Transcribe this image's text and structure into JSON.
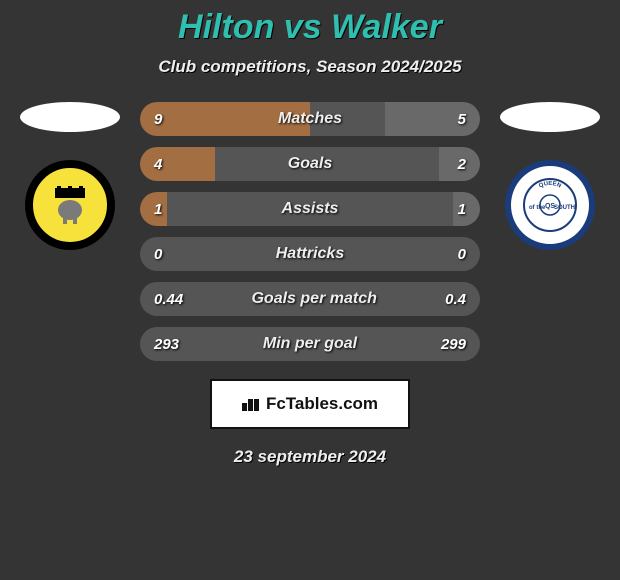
{
  "title": "Hilton vs Walker",
  "subtitle": "Club competitions, Season 2024/2025",
  "date": "23 september 2024",
  "logo_text": "FcTables.com",
  "colors": {
    "page_bg": "#343434",
    "title_color": "#2fbfb0",
    "bar_left_color": "#a36f42",
    "bar_right_color": "#696969",
    "bar_bg": "#555555",
    "text_shadow": "#000000"
  },
  "left_team": {
    "name": "Dumbarton",
    "crest_bg": "#f6e23a",
    "crest_border": "#000000"
  },
  "right_team": {
    "name": "Queen of the South",
    "crest_bg": "#ffffff",
    "crest_border": "#1a3c7a"
  },
  "stats": [
    {
      "label": "Matches",
      "left_val": "9",
      "right_val": "5",
      "left_pct": 50,
      "right_pct": 28
    },
    {
      "label": "Goals",
      "left_val": "4",
      "right_val": "2",
      "left_pct": 22,
      "right_pct": 12
    },
    {
      "label": "Assists",
      "left_val": "1",
      "right_val": "1",
      "left_pct": 8,
      "right_pct": 8
    },
    {
      "label": "Hattricks",
      "left_val": "0",
      "right_val": "0",
      "left_pct": 0,
      "right_pct": 0
    },
    {
      "label": "Goals per match",
      "left_val": "0.44",
      "right_val": "0.4",
      "left_pct": 0,
      "right_pct": 0
    },
    {
      "label": "Min per goal",
      "left_val": "293",
      "right_val": "299",
      "left_pct": 0,
      "right_pct": 0
    }
  ]
}
